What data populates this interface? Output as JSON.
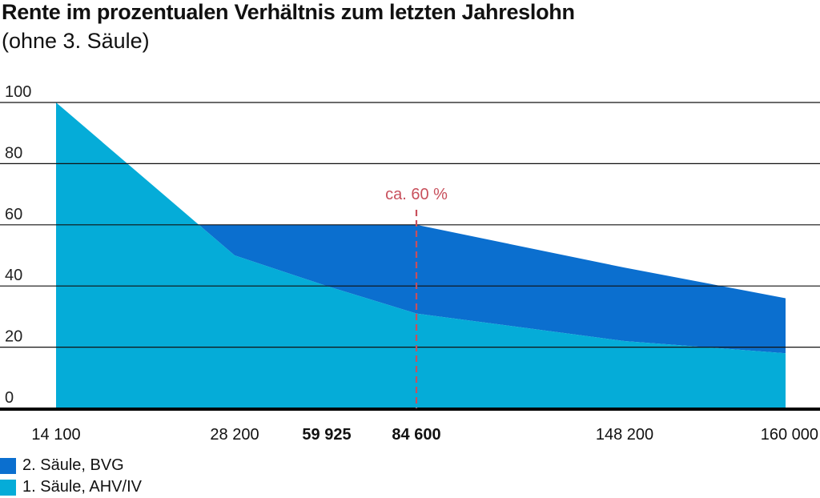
{
  "title": "Rente im prozentualen Verhältnis zum letzten Jahreslohn",
  "subtitle": "(ohne 3. Säule)",
  "colors": {
    "bvg": "#0b6fcf",
    "ahv": "#05acd8",
    "marker": "#c8505c",
    "grid": "#111111"
  },
  "chart_data": {
    "type": "area",
    "title": "Rente im prozentualen Verhältnis zum letzten Jahreslohn",
    "subtitle": "(ohne 3. Säule)",
    "ylim": [
      0,
      100
    ],
    "yticks": [
      "0",
      "20",
      "40",
      "60",
      "80",
      "100"
    ],
    "xticks": [
      {
        "label": "14 100",
        "bold": false
      },
      {
        "label": "28 200",
        "bold": false
      },
      {
        "label": "59 925",
        "bold": true
      },
      {
        "label": "84 600",
        "bold": true
      },
      {
        "label": "148 200",
        "bold": false
      },
      {
        "label": "160 000",
        "bold": false
      }
    ],
    "series": [
      {
        "name": "1. Säule, AHV/IV",
        "color": "#05acd8",
        "points": [
          [
            0,
            100
          ],
          [
            1,
            50
          ],
          [
            2,
            40
          ],
          [
            3,
            31
          ],
          [
            4,
            22
          ],
          [
            5,
            18
          ]
        ]
      },
      {
        "name": "2. Säule, BVG",
        "color": "#0b6fcf",
        "points": [
          [
            1,
            60
          ],
          [
            2,
            60
          ],
          [
            3,
            60
          ],
          [
            4,
            46
          ],
          [
            5,
            36
          ]
        ]
      }
    ],
    "annotation": {
      "text": "ca. 60 %",
      "x_index": 3,
      "value": 60
    },
    "grid": true,
    "legend_position": "bottom-left"
  },
  "legend": [
    {
      "label": "2. Säule, BVG",
      "color": "#0b6fcf"
    },
    {
      "label": "1. Säule, AHV/IV",
      "color": "#05acd8"
    }
  ]
}
